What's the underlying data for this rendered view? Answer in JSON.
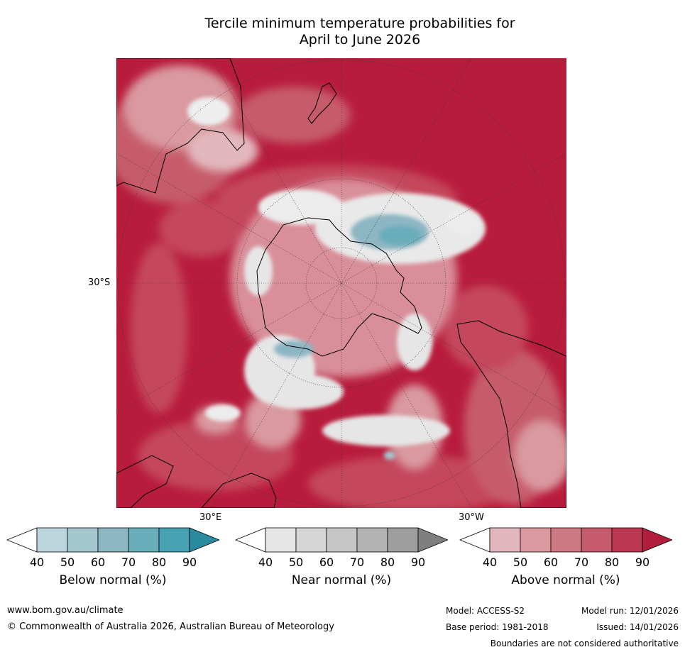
{
  "title": {
    "line1": "Tercile minimum temperature probabilities for",
    "line2": "April to June 2026"
  },
  "map": {
    "projection": "south-polar-stereographic",
    "labels": {
      "lat_30s": "30°S",
      "lon_30e": "30°E",
      "lon_30w": "30°W"
    }
  },
  "colorbars": [
    {
      "label": "Below normal (%)",
      "ticks": [
        "40",
        "50",
        "60",
        "70",
        "80",
        "90"
      ],
      "colors": [
        "#ffffff",
        "#bcd6de",
        "#a5c7cf",
        "#8db6c3",
        "#6aadbb",
        "#47a3b3",
        "#2a8aa0"
      ]
    },
    {
      "label": "Near normal (%)",
      "ticks": [
        "40",
        "50",
        "60",
        "70",
        "80",
        "90"
      ],
      "colors": [
        "#ffffff",
        "#e6e6e6",
        "#d6d6d6",
        "#c6c6c6",
        "#b3b3b3",
        "#9e9e9e",
        "#7f7f7f"
      ]
    },
    {
      "label": "Above normal (%)",
      "ticks": [
        "40",
        "50",
        "60",
        "70",
        "80",
        "90"
      ],
      "colors": [
        "#ffffff",
        "#e2b7bd",
        "#d9999f",
        "#cf7983",
        "#c65b6b",
        "#bc3750",
        "#b01e3c"
      ]
    }
  ],
  "footer": {
    "website": "www.bom.gov.au/climate",
    "copyright": "© Commonwealth of Australia 2026, Australian Bureau of Meteorology",
    "model": "Model: ACCESS-S2",
    "model_run": "Model run: 12/01/2026",
    "base_period": "Base period: 1981-2018",
    "issued": "Issued: 14/01/2026",
    "disclaimer": "Boundaries are not considered authoritative"
  }
}
